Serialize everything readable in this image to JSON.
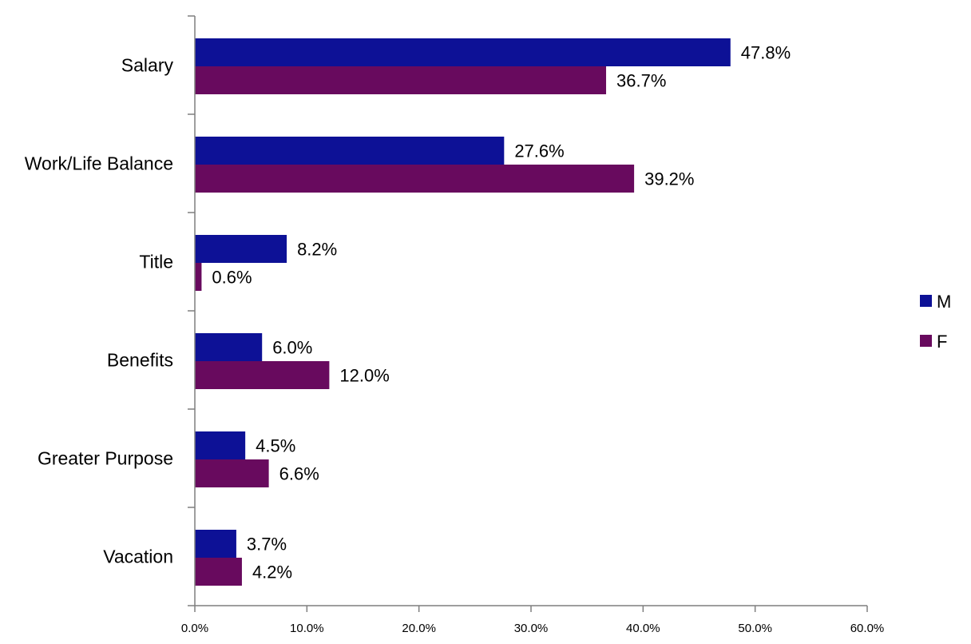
{
  "chart_data": {
    "type": "bar",
    "orientation": "horizontal",
    "categories": [
      "Salary",
      "Work/Life Balance",
      "Title",
      "Benefits",
      "Greater Purpose",
      "Vacation"
    ],
    "series": [
      {
        "name": "M",
        "color": "#0d1196",
        "values": [
          47.8,
          27.6,
          8.2,
          6.0,
          4.5,
          3.7
        ],
        "labels": [
          "47.8%",
          "27.6%",
          "8.2%",
          "6.0%",
          "4.5%",
          "3.7%"
        ]
      },
      {
        "name": "F",
        "color": "#680a5e",
        "values": [
          36.7,
          39.2,
          0.6,
          12.0,
          6.6,
          4.2
        ],
        "labels": [
          "36.7%",
          "39.2%",
          "0.6%",
          "12.0%",
          "6.6%",
          "4.2%"
        ]
      }
    ],
    "xlim": [
      0,
      60
    ],
    "xticks": [
      0,
      10,
      20,
      30,
      40,
      50,
      60
    ],
    "xtick_labels": [
      "0.0%",
      "10.0%",
      "20.0%",
      "30.0%",
      "40.0%",
      "50.0%",
      "60.0%"
    ],
    "title": "",
    "xlabel": "",
    "ylabel": "",
    "grid": false,
    "legend_position": "right"
  }
}
